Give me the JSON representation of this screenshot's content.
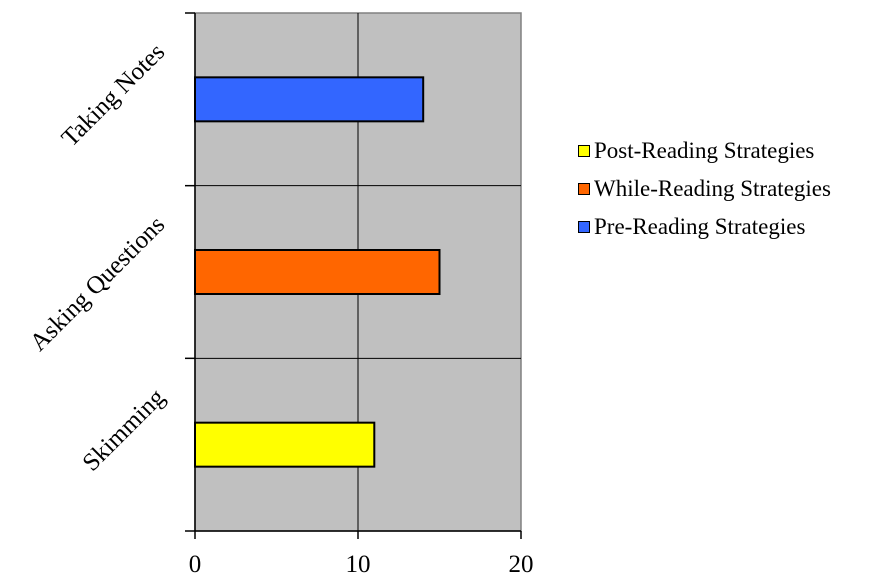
{
  "chart_data": {
    "type": "bar",
    "orientation": "horizontal",
    "categories": [
      "Taking Notes",
      "Asking Questions",
      "Skimming"
    ],
    "series": [
      {
        "name": "Post-Reading Strategies",
        "color": "#ffff00",
        "values": [
          0,
          0,
          11
        ]
      },
      {
        "name": "While-Reading Strategies",
        "color": "#ff6600",
        "values": [
          0,
          15,
          0
        ]
      },
      {
        "name": "Pre-Reading Strategies",
        "color": "#3366ff",
        "values": [
          14,
          0,
          0
        ]
      }
    ],
    "xlim": [
      0,
      20
    ],
    "x_ticks": [
      "0",
      "10",
      "20"
    ],
    "grid": true,
    "plot_background": "#c0c0c0",
    "legend_position": "right"
  }
}
